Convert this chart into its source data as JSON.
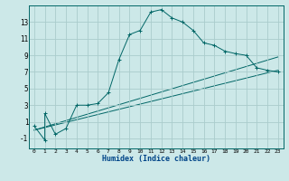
{
  "xlabel": "Humidex (Indice chaleur)",
  "bg_color": "#cce8e8",
  "grid_color": "#aacccc",
  "line_color": "#006666",
  "xlim": [
    -0.5,
    23.5
  ],
  "ylim": [
    -2.2,
    15.0
  ],
  "xticks": [
    0,
    1,
    2,
    3,
    4,
    5,
    6,
    7,
    8,
    9,
    10,
    11,
    12,
    13,
    14,
    15,
    16,
    17,
    18,
    19,
    20,
    21,
    22,
    23
  ],
  "yticks": [
    -1,
    1,
    3,
    5,
    7,
    9,
    11,
    13
  ],
  "main_x": [
    0,
    1,
    1,
    2,
    3,
    4,
    5,
    6,
    7,
    8,
    9,
    10,
    11,
    12,
    13,
    14,
    15,
    16,
    17,
    18,
    19,
    20,
    21,
    22,
    23
  ],
  "main_y": [
    0.5,
    -1.2,
    2.0,
    -0.5,
    0.2,
    3.0,
    3.0,
    3.2,
    4.5,
    8.5,
    11.5,
    12.0,
    14.2,
    14.5,
    13.5,
    13.0,
    12.0,
    10.5,
    10.2,
    9.5,
    9.2,
    9.0,
    7.5,
    7.2,
    7.0
  ],
  "line2_x": [
    0,
    23
  ],
  "line2_y": [
    0.0,
    8.8
  ],
  "line3_x": [
    0,
    23
  ],
  "line3_y": [
    0.0,
    7.2
  ]
}
